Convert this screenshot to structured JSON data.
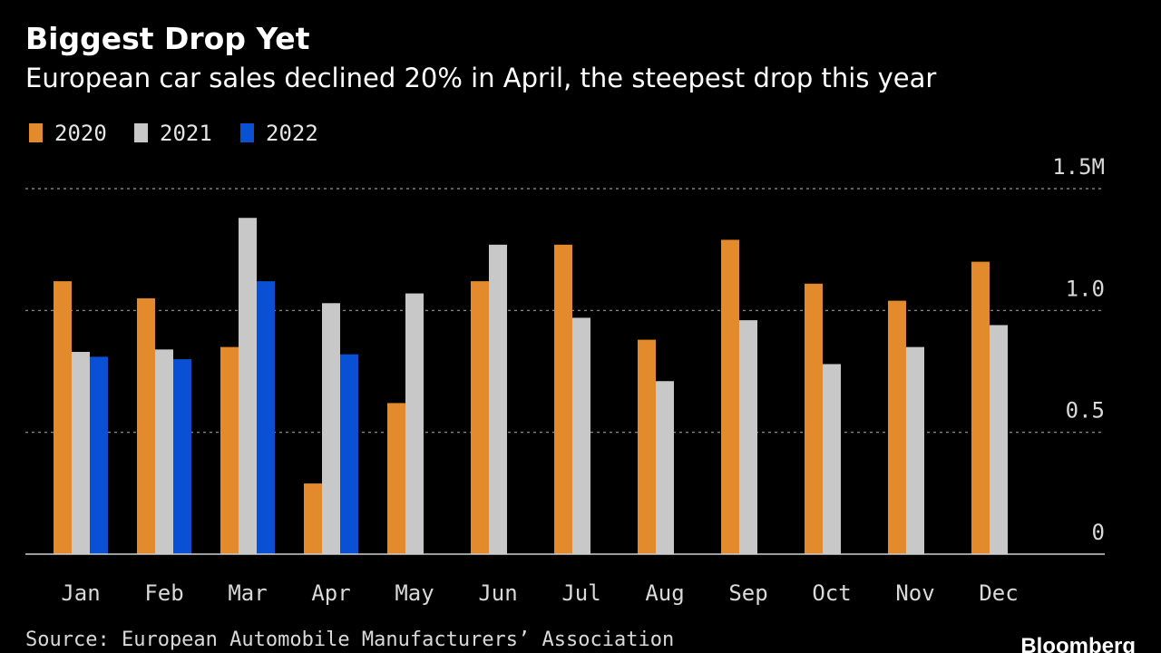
{
  "chart_data": {
    "type": "bar",
    "title": "Biggest Drop Yet",
    "subtitle": "European car sales declined 20% in April, the steepest drop this year",
    "categories": [
      "Jan",
      "Feb",
      "Mar",
      "Apr",
      "May",
      "Jun",
      "Jul",
      "Aug",
      "Sep",
      "Oct",
      "Nov",
      "Dec"
    ],
    "series": [
      {
        "name": "2020",
        "color": "#e38b2c",
        "values": [
          1.12,
          1.05,
          0.85,
          0.29,
          0.62,
          1.12,
          1.27,
          0.88,
          1.29,
          1.11,
          1.04,
          1.2
        ]
      },
      {
        "name": "2021",
        "color": "#c8c8c8",
        "values": [
          0.83,
          0.84,
          1.38,
          1.03,
          1.07,
          1.27,
          0.97,
          0.71,
          0.96,
          0.78,
          0.85,
          0.94
        ]
      },
      {
        "name": "2022",
        "color": "#0a50d4",
        "values": [
          0.81,
          0.8,
          1.12,
          0.82,
          null,
          null,
          null,
          null,
          null,
          null,
          null,
          null
        ]
      }
    ],
    "ylim": [
      0,
      1.5
    ],
    "yticks": [
      {
        "value": 1.5,
        "label": "1.5M"
      },
      {
        "value": 1.0,
        "label": "1.0"
      },
      {
        "value": 0.5,
        "label": "0.5"
      },
      {
        "value": 0,
        "label": "0"
      }
    ],
    "y_axis_side": "right",
    "grid": true,
    "legend_position": "top-left",
    "source": "Source: European Automobile Manufacturers’ Association",
    "brand": "Bloomberg"
  }
}
